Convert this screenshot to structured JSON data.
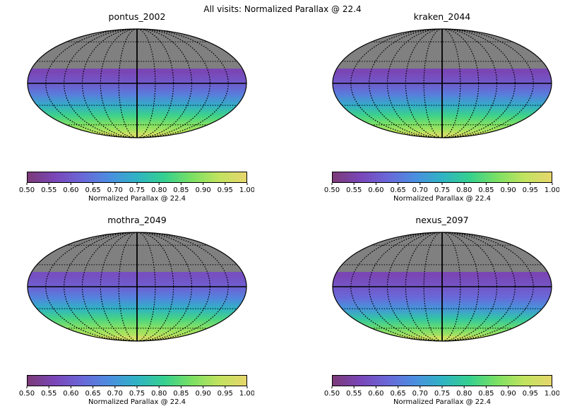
{
  "figure": {
    "suptitle": "All visits: Normalized Parallax @ 22.4"
  },
  "chart_data": [
    {
      "type": "heatmap",
      "projection": "mollweide",
      "title": "pontus_2002",
      "colorbar": {
        "label": "Normalized Parallax @ 22.4",
        "range": [
          0.5,
          1.0
        ],
        "ticks": [
          "0.50",
          "0.55",
          "0.60",
          "0.65",
          "0.70",
          "0.75",
          "0.80",
          "0.85",
          "0.90",
          "0.95",
          "1.00"
        ]
      },
      "grid": true,
      "no_data_region": "north of dec ~ +20",
      "values_by_dec": [
        {
          "dec": 15,
          "value": 0.56
        },
        {
          "dec": 0,
          "value": 0.6
        },
        {
          "dec": -15,
          "value": 0.66
        },
        {
          "dec": -30,
          "value": 0.74
        },
        {
          "dec": -45,
          "value": 0.82
        },
        {
          "dec": -60,
          "value": 0.88
        },
        {
          "dec": -75,
          "value": 0.93
        },
        {
          "dec": -90,
          "value": 0.96
        }
      ]
    },
    {
      "type": "heatmap",
      "projection": "mollweide",
      "title": "kraken_2044",
      "colorbar": {
        "label": "Normalized Parallax @ 22.4",
        "range": [
          0.5,
          1.0
        ],
        "ticks": [
          "0.50",
          "0.55",
          "0.60",
          "0.65",
          "0.70",
          "0.75",
          "0.80",
          "0.85",
          "0.90",
          "0.95",
          "1.00"
        ]
      },
      "grid": true,
      "no_data_region": "north of dec ~ +20",
      "values_by_dec": [
        {
          "dec": 15,
          "value": 0.56
        },
        {
          "dec": 0,
          "value": 0.6
        },
        {
          "dec": -15,
          "value": 0.66
        },
        {
          "dec": -30,
          "value": 0.74
        },
        {
          "dec": -45,
          "value": 0.82
        },
        {
          "dec": -60,
          "value": 0.88
        },
        {
          "dec": -75,
          "value": 0.93
        },
        {
          "dec": -90,
          "value": 0.96
        }
      ]
    },
    {
      "type": "heatmap",
      "projection": "mollweide",
      "title": "mothra_2049",
      "colorbar": {
        "label": "Normalized Parallax @ 22.4",
        "range": [
          0.5,
          1.0
        ],
        "ticks": [
          "0.50",
          "0.55",
          "0.60",
          "0.65",
          "0.70",
          "0.75",
          "0.80",
          "0.85",
          "0.90",
          "0.95",
          "1.00"
        ]
      },
      "grid": true,
      "no_data_region": "north of dec ~ +20",
      "values_by_dec": [
        {
          "dec": 15,
          "value": 0.58
        },
        {
          "dec": 0,
          "value": 0.61
        },
        {
          "dec": -15,
          "value": 0.67
        },
        {
          "dec": -30,
          "value": 0.75
        },
        {
          "dec": -45,
          "value": 0.83
        },
        {
          "dec": -60,
          "value": 0.89
        },
        {
          "dec": -75,
          "value": 0.93
        },
        {
          "dec": -90,
          "value": 0.96
        }
      ]
    },
    {
      "type": "heatmap",
      "projection": "mollweide",
      "title": "nexus_2097",
      "colorbar": {
        "label": "Normalized Parallax @ 22.4",
        "range": [
          0.5,
          1.0
        ],
        "ticks": [
          "0.50",
          "0.55",
          "0.60",
          "0.65",
          "0.70",
          "0.75",
          "0.80",
          "0.85",
          "0.90",
          "0.95",
          "1.00"
        ]
      },
      "grid": true,
      "no_data_region": "north of dec ~ +20",
      "values_by_dec": [
        {
          "dec": 15,
          "value": 0.56
        },
        {
          "dec": 0,
          "value": 0.59
        },
        {
          "dec": -15,
          "value": 0.63
        },
        {
          "dec": -30,
          "value": 0.7
        },
        {
          "dec": -45,
          "value": 0.79
        },
        {
          "dec": -60,
          "value": 0.86
        },
        {
          "dec": -75,
          "value": 0.92
        },
        {
          "dec": -90,
          "value": 0.95
        }
      ]
    }
  ],
  "colors": {
    "no_data": "#808080",
    "colormap": [
      "#7b3a77",
      "#7a46b8",
      "#6a67d8",
      "#4b8ee0",
      "#2fb3c4",
      "#35d08f",
      "#7ae063",
      "#c1e35f",
      "#e6d66c"
    ]
  }
}
